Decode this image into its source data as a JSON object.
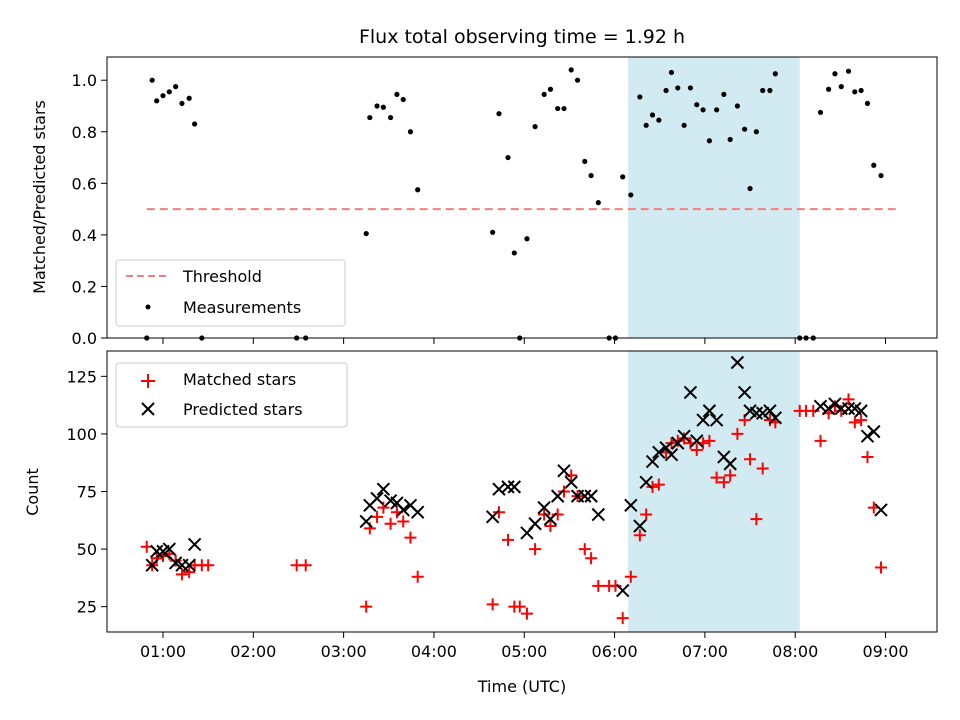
{
  "chart_data": [
    {
      "type": "scatter",
      "title": "Flux total observing time = 1.92 h",
      "ylabel": "Matched/Predicted stars",
      "xlabel": "",
      "x_unit": "hours UTC",
      "xlim": [
        0.38,
        9.57
      ],
      "ylim": [
        0,
        1.09
      ],
      "yticks": [
        0.0,
        0.2,
        0.4,
        0.6,
        0.8,
        1.0
      ],
      "ytick_labels": [
        "0.0",
        "0.2",
        "0.4",
        "0.6",
        "0.8",
        "1.0"
      ],
      "highlight_span": [
        6.15,
        8.05
      ],
      "highlight_color": "#add8e6",
      "legend_position": "lower-left",
      "threshold": {
        "name": "Threshold",
        "y": 0.5,
        "x_range": [
          0.82,
          9.15
        ],
        "color": "#f08080",
        "style": "dashed"
      },
      "series": [
        {
          "name": "Measurements",
          "color": "#000000",
          "marker": "dot",
          "points": [
            [
              0.82,
              0.0
            ],
            [
              0.88,
              1.0
            ],
            [
              0.93,
              0.92
            ],
            [
              1.0,
              0.94
            ],
            [
              1.07,
              0.955
            ],
            [
              1.14,
              0.975
            ],
            [
              1.21,
              0.91
            ],
            [
              1.29,
              0.93
            ],
            [
              1.35,
              0.83
            ],
            [
              1.43,
              0.0
            ],
            [
              2.48,
              0.0
            ],
            [
              2.58,
              0.0
            ],
            [
              3.25,
              0.405
            ],
            [
              3.29,
              0.855
            ],
            [
              3.37,
              0.9
            ],
            [
              3.44,
              0.895
            ],
            [
              3.52,
              0.855
            ],
            [
              3.59,
              0.945
            ],
            [
              3.66,
              0.925
            ],
            [
              3.74,
              0.8
            ],
            [
              3.82,
              0.575
            ],
            [
              4.65,
              0.41
            ],
            [
              4.72,
              0.87
            ],
            [
              4.82,
              0.7
            ],
            [
              4.89,
              0.33
            ],
            [
              4.95,
              0.0
            ],
            [
              5.03,
              0.385
            ],
            [
              5.12,
              0.82
            ],
            [
              5.22,
              0.945
            ],
            [
              5.29,
              0.965
            ],
            [
              5.37,
              0.89
            ],
            [
              5.44,
              0.89
            ],
            [
              5.52,
              1.04
            ],
            [
              5.59,
              1.0
            ],
            [
              5.67,
              0.685
            ],
            [
              5.74,
              0.63
            ],
            [
              5.82,
              0.525
            ],
            [
              5.94,
              0.0
            ],
            [
              6.01,
              0.0
            ],
            [
              6.09,
              0.625
            ],
            [
              6.18,
              0.555
            ],
            [
              6.28,
              0.935
            ],
            [
              6.35,
              0.825
            ],
            [
              6.42,
              0.865
            ],
            [
              6.49,
              0.845
            ],
            [
              6.57,
              0.96
            ],
            [
              6.63,
              1.03
            ],
            [
              6.7,
              0.97
            ],
            [
              6.77,
              0.825
            ],
            [
              6.84,
              0.97
            ],
            [
              6.91,
              0.905
            ],
            [
              6.98,
              0.885
            ],
            [
              7.05,
              0.765
            ],
            [
              7.13,
              0.885
            ],
            [
              7.21,
              0.945
            ],
            [
              7.28,
              0.77
            ],
            [
              7.36,
              0.9
            ],
            [
              7.44,
              0.81
            ],
            [
              7.5,
              0.58
            ],
            [
              7.57,
              0.8
            ],
            [
              7.64,
              0.96
            ],
            [
              7.72,
              0.96
            ],
            [
              7.78,
              1.025
            ],
            [
              8.05,
              0.0
            ],
            [
              8.12,
              0.0
            ],
            [
              8.2,
              0.0
            ],
            [
              8.28,
              0.875
            ],
            [
              8.37,
              0.965
            ],
            [
              8.44,
              1.025
            ],
            [
              8.51,
              0.975
            ],
            [
              8.59,
              1.035
            ],
            [
              8.66,
              0.955
            ],
            [
              8.73,
              0.96
            ],
            [
              8.8,
              0.91
            ],
            [
              8.87,
              0.67
            ],
            [
              8.95,
              0.63
            ]
          ]
        }
      ]
    },
    {
      "type": "scatter",
      "title": "",
      "ylabel": "Count",
      "xlabel": "Time (UTC)",
      "x_unit": "hours UTC",
      "xlim": [
        0.38,
        9.57
      ],
      "ylim": [
        14,
        136
      ],
      "yticks": [
        25,
        50,
        75,
        100,
        125
      ],
      "ytick_labels": [
        "25",
        "50",
        "75",
        "100",
        "125"
      ],
      "xticks": [
        1,
        2,
        3,
        4,
        5,
        6,
        7,
        8,
        9
      ],
      "xtick_labels": [
        "01:00",
        "02:00",
        "03:00",
        "04:00",
        "05:00",
        "06:00",
        "07:00",
        "08:00",
        "09:00"
      ],
      "highlight_span": [
        6.15,
        8.05
      ],
      "highlight_color": "#add8e6",
      "legend_position": "upper-left",
      "series": [
        {
          "name": "Matched stars",
          "color": "#ff0000",
          "marker": "plus",
          "points": [
            [
              0.82,
              51
            ],
            [
              0.88,
              43
            ],
            [
              0.93,
              46
            ],
            [
              1.0,
              47
            ],
            [
              1.07,
              48
            ],
            [
              1.14,
              45
            ],
            [
              1.21,
              39
            ],
            [
              1.29,
              40
            ],
            [
              1.35,
              43
            ],
            [
              1.43,
              43
            ],
            [
              1.5,
              43
            ],
            [
              2.48,
              43
            ],
            [
              2.58,
              43
            ],
            [
              3.25,
              25
            ],
            [
              3.29,
              59
            ],
            [
              3.37,
              64
            ],
            [
              3.44,
              68
            ],
            [
              3.52,
              61
            ],
            [
              3.59,
              66
            ],
            [
              3.66,
              62
            ],
            [
              3.74,
              55
            ],
            [
              3.82,
              38
            ],
            [
              4.65,
              26
            ],
            [
              4.72,
              66
            ],
            [
              4.82,
              54
            ],
            [
              4.89,
              25
            ],
            [
              4.95,
              25
            ],
            [
              5.03,
              22
            ],
            [
              5.12,
              50
            ],
            [
              5.22,
              65
            ],
            [
              5.29,
              60
            ],
            [
              5.37,
              65
            ],
            [
              5.44,
              75
            ],
            [
              5.52,
              82
            ],
            [
              5.59,
              73
            ],
            [
              5.67,
              50
            ],
            [
              5.74,
              46
            ],
            [
              5.82,
              34
            ],
            [
              5.94,
              34
            ],
            [
              6.01,
              34
            ],
            [
              6.09,
              20
            ],
            [
              6.18,
              38
            ],
            [
              6.28,
              56
            ],
            [
              6.35,
              65
            ],
            [
              6.42,
              77
            ],
            [
              6.49,
              78
            ],
            [
              6.57,
              92
            ],
            [
              6.63,
              96
            ],
            [
              6.7,
              97
            ],
            [
              6.77,
              98
            ],
            [
              6.84,
              96
            ],
            [
              6.91,
              93
            ],
            [
              6.98,
              96
            ],
            [
              7.05,
              97
            ],
            [
              7.13,
              81
            ],
            [
              7.21,
              79
            ],
            [
              7.28,
              82
            ],
            [
              7.36,
              100
            ],
            [
              7.44,
              106
            ],
            [
              7.5,
              89
            ],
            [
              7.57,
              63
            ],
            [
              7.64,
              85
            ],
            [
              7.72,
              106
            ],
            [
              7.78,
              105
            ],
            [
              8.05,
              110
            ],
            [
              8.12,
              110
            ],
            [
              8.2,
              110
            ],
            [
              8.28,
              97
            ],
            [
              8.37,
              109
            ],
            [
              8.44,
              112
            ],
            [
              8.51,
              110
            ],
            [
              8.59,
              115
            ],
            [
              8.66,
              105
            ],
            [
              8.73,
              106
            ],
            [
              8.8,
              90
            ],
            [
              8.87,
              68
            ],
            [
              8.95,
              42
            ]
          ]
        },
        {
          "name": "Predicted stars",
          "color": "#000000",
          "marker": "x",
          "points": [
            [
              0.88,
              43
            ],
            [
              0.93,
              49
            ],
            [
              1.0,
              49
            ],
            [
              1.07,
              50
            ],
            [
              1.14,
              44
            ],
            [
              1.21,
              43
            ],
            [
              1.29,
              43
            ],
            [
              1.35,
              52
            ],
            [
              3.25,
              62
            ],
            [
              3.29,
              69
            ],
            [
              3.37,
              72
            ],
            [
              3.44,
              76
            ],
            [
              3.52,
              71
            ],
            [
              3.59,
              70
            ],
            [
              3.66,
              67
            ],
            [
              3.74,
              69
            ],
            [
              3.82,
              66
            ],
            [
              4.65,
              64
            ],
            [
              4.72,
              76
            ],
            [
              4.82,
              77
            ],
            [
              4.89,
              77
            ],
            [
              5.03,
              57
            ],
            [
              5.12,
              61
            ],
            [
              5.22,
              68
            ],
            [
              5.29,
              63
            ],
            [
              5.37,
              73
            ],
            [
              5.44,
              84
            ],
            [
              5.52,
              79
            ],
            [
              5.59,
              73
            ],
            [
              5.67,
              73
            ],
            [
              5.74,
              73
            ],
            [
              5.82,
              65
            ],
            [
              6.09,
              32
            ],
            [
              6.18,
              69
            ],
            [
              6.28,
              60
            ],
            [
              6.35,
              79
            ],
            [
              6.42,
              88
            ],
            [
              6.49,
              92
            ],
            [
              6.57,
              94
            ],
            [
              6.63,
              91
            ],
            [
              6.7,
              96
            ],
            [
              6.77,
              99
            ],
            [
              6.84,
              118
            ],
            [
              6.91,
              97
            ],
            [
              6.98,
              106
            ],
            [
              7.05,
              110
            ],
            [
              7.13,
              106
            ],
            [
              7.21,
              90
            ],
            [
              7.28,
              87
            ],
            [
              7.36,
              131
            ],
            [
              7.44,
              118
            ],
            [
              7.5,
              110
            ],
            [
              7.57,
              109
            ],
            [
              7.64,
              109
            ],
            [
              7.72,
              110
            ],
            [
              7.78,
              107
            ],
            [
              8.28,
              112
            ],
            [
              8.37,
              111
            ],
            [
              8.44,
              113
            ],
            [
              8.51,
              111
            ],
            [
              8.59,
              111
            ],
            [
              8.66,
              111
            ],
            [
              8.73,
              110
            ],
            [
              8.8,
              99
            ],
            [
              8.87,
              101
            ],
            [
              8.95,
              67
            ]
          ]
        }
      ]
    }
  ]
}
